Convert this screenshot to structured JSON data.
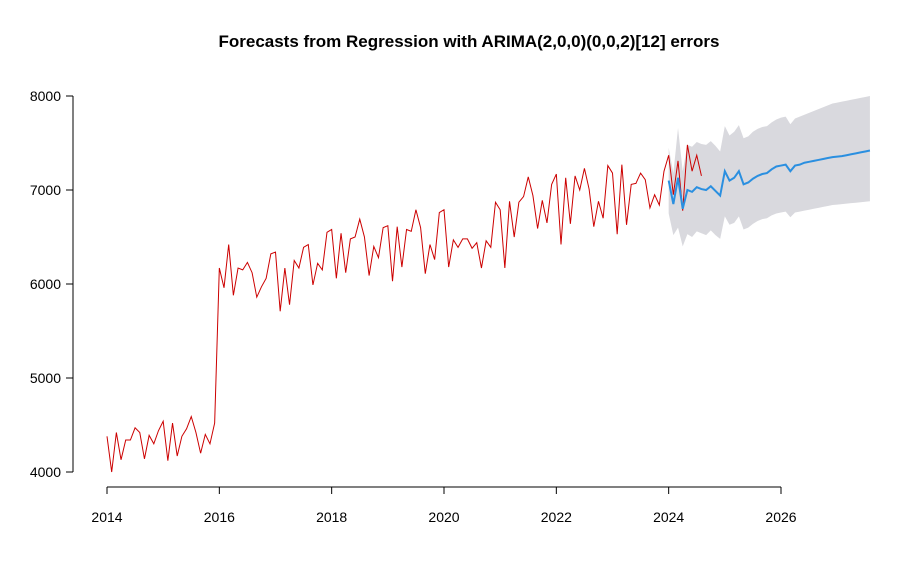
{
  "chart_data": {
    "type": "line",
    "title": "Forecasts from Regression with ARIMA(2,0,0)(0,0,2)[12] errors",
    "xlabel": "",
    "ylabel": "",
    "xlim": [
      2014,
      2027
    ],
    "ylim": [
      4000,
      8000
    ],
    "x_ticks": [
      "2014",
      "2016",
      "2018",
      "2020",
      "2022",
      "2024",
      "2026"
    ],
    "y_ticks": [
      "4000",
      "5000",
      "6000",
      "7000",
      "8000"
    ],
    "grid": false,
    "colors": {
      "observed": "#cc0000",
      "forecast": "#2a8fe0",
      "interval": "#d9d9de"
    },
    "observed": {
      "start": 2014,
      "frequency": 12,
      "values": [
        4380,
        4000,
        4420,
        4130,
        4340,
        4340,
        4470,
        4420,
        4140,
        4390,
        4300,
        4440,
        4540,
        4120,
        4520,
        4170,
        4380,
        4460,
        4590,
        4420,
        4200,
        4400,
        4300,
        4520,
        6170,
        5960,
        6420,
        5880,
        6170,
        6150,
        6230,
        6120,
        5860,
        5970,
        6060,
        6320,
        6340,
        5710,
        6170,
        5780,
        6250,
        6170,
        6390,
        6420,
        5990,
        6220,
        6150,
        6550,
        6580,
        6060,
        6540,
        6120,
        6480,
        6500,
        6690,
        6500,
        6090,
        6400,
        6280,
        6600,
        6620,
        6030,
        6610,
        6180,
        6580,
        6560,
        6790,
        6600,
        6110,
        6420,
        6260,
        6760,
        6790,
        6180,
        6470,
        6390,
        6480,
        6480,
        6380,
        6440,
        6170,
        6460,
        6390,
        6870,
        6790,
        6170,
        6880,
        6500,
        6870,
        6930,
        7140,
        6940,
        6590,
        6890,
        6650,
        7060,
        7170,
        6420,
        7130,
        6640,
        7150,
        7000,
        7230,
        7010,
        6610,
        6880,
        6700,
        7260,
        7180,
        6530,
        7270,
        6630,
        7060,
        7070,
        7180,
        7110,
        6810,
        6950,
        6840,
        7200,
        7370,
        6950,
        7310,
        6780,
        7480,
        7200,
        7370,
        7150
      ]
    },
    "forecast": {
      "start": 2024,
      "frequency": 12,
      "mean": [
        7100,
        6850,
        7130,
        6800,
        7000,
        6980,
        7030,
        7010,
        7000,
        7040,
        6990,
        6940,
        7200,
        7100,
        7130,
        7200,
        7060,
        7080,
        7120,
        7150,
        7170,
        7180,
        7220,
        7250,
        7260,
        7270,
        7200,
        7260,
        7270,
        7290,
        7300,
        7310,
        7320,
        7330,
        7340,
        7350,
        7355,
        7360,
        7370,
        7380,
        7390,
        7400,
        7410,
        7420
      ],
      "lower": [
        6750,
        6520,
        6600,
        6400,
        6530,
        6500,
        6560,
        6540,
        6520,
        6570,
        6520,
        6480,
        6720,
        6630,
        6650,
        6720,
        6580,
        6600,
        6640,
        6670,
        6690,
        6700,
        6730,
        6750,
        6760,
        6770,
        6710,
        6760,
        6770,
        6780,
        6790,
        6800,
        6810,
        6820,
        6830,
        6840,
        6845,
        6850,
        6855,
        6860,
        6865,
        6870,
        6875,
        6880
      ],
      "upper": [
        7450,
        7180,
        7660,
        7200,
        7480,
        7460,
        7510,
        7490,
        7480,
        7520,
        7470,
        7410,
        7680,
        7580,
        7620,
        7690,
        7550,
        7570,
        7620,
        7650,
        7670,
        7680,
        7720,
        7750,
        7770,
        7780,
        7700,
        7760,
        7780,
        7800,
        7820,
        7840,
        7860,
        7880,
        7900,
        7920,
        7930,
        7940,
        7950,
        7960,
        7970,
        7980,
        7990,
        8000
      ]
    }
  }
}
